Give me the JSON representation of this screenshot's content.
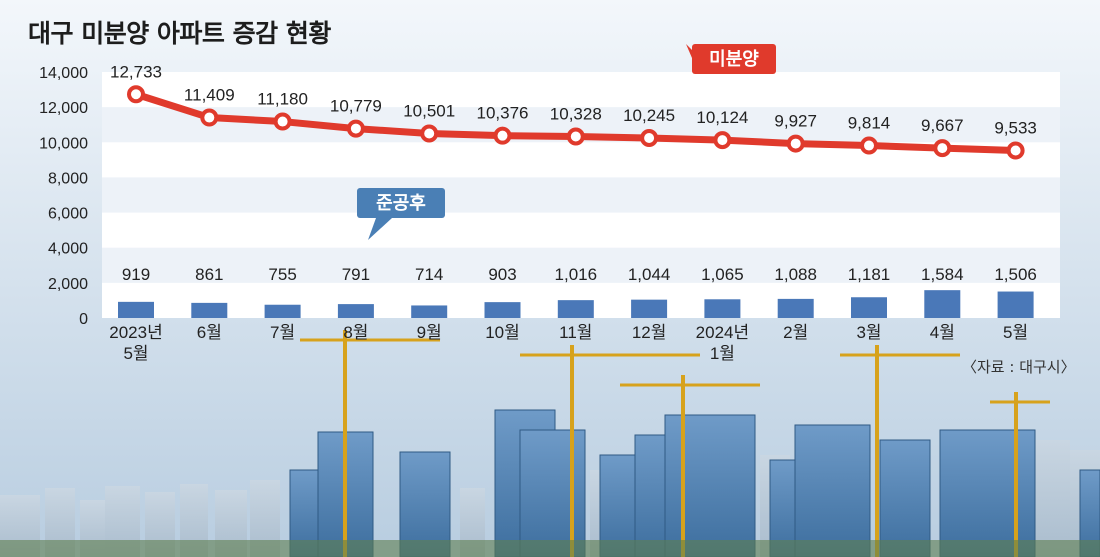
{
  "title": "대구 미분양 아파트 증감 현황",
  "source": "〈자료 : 대구시〉",
  "colors": {
    "line": "#e03a2c",
    "bar": "#4a78b8",
    "label_unsold": "#e03a2c",
    "label_completed": "#4a7fb5",
    "band": "#ffffff",
    "sky_top": "#f3f7fb",
    "sky_bottom": "#b8cde0"
  },
  "chart_data": {
    "type": "line+bar",
    "categories": [
      "2023년\n5월",
      "6월",
      "7월",
      "8월",
      "9월",
      "10월",
      "11월",
      "12월",
      "2024년\n1월",
      "2월",
      "3월",
      "4월",
      "5월"
    ],
    "series": [
      {
        "name": "미분양",
        "type": "line",
        "values": [
          12733,
          11409,
          11180,
          10779,
          10501,
          10376,
          10328,
          10245,
          10124,
          9927,
          9814,
          9667,
          9533
        ]
      },
      {
        "name": "준공후",
        "type": "bar",
        "values": [
          919,
          861,
          755,
          791,
          714,
          903,
          1016,
          1044,
          1065,
          1088,
          1181,
          1584,
          1506
        ]
      }
    ],
    "ylim": [
      0,
      14000
    ],
    "yticks": [
      0,
      2000,
      4000,
      6000,
      8000,
      10000,
      12000,
      14000
    ],
    "grid": "alternating white bands",
    "background": "city skyline photo with construction cranes"
  }
}
